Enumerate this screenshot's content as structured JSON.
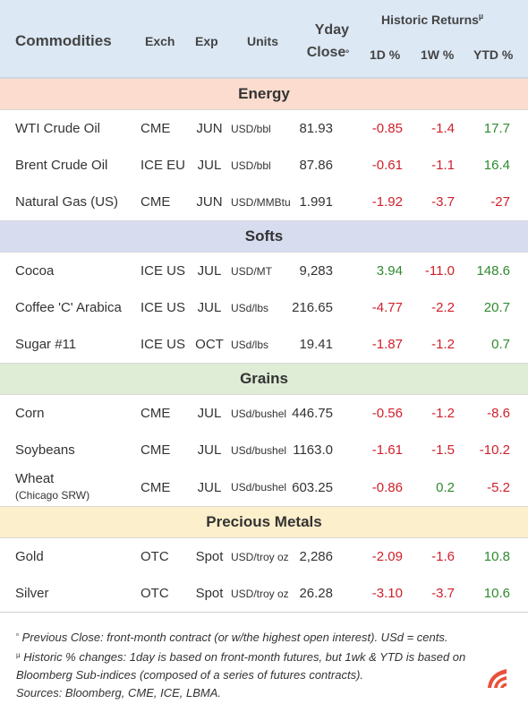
{
  "header": {
    "commodities": "Commodities",
    "exch": "Exch",
    "exp": "Exp",
    "units": "Units",
    "yday_line1": "Yday",
    "yday_line2": "Close",
    "yday_mark": "ᵒ",
    "historic": "Historic Returns",
    "historic_mark": "µ",
    "d1": "1D %",
    "w1": "1W %",
    "ytd": "YTD %"
  },
  "sections": [
    {
      "title": "Energy",
      "rows": [
        {
          "name": "WTI Crude Oil",
          "sub": "",
          "exch": "CME",
          "exp": "JUN",
          "units": "USD/bbl",
          "close": "81.93",
          "d1": "-0.85",
          "w1": "-1.4",
          "ytd": "17.7"
        },
        {
          "name": "Brent Crude Oil",
          "sub": "",
          "exch": "ICE EU",
          "exp": "JUL",
          "units": "USD/bbl",
          "close": "87.86",
          "d1": "-0.61",
          "w1": "-1.1",
          "ytd": "16.4"
        },
        {
          "name": "Natural Gas (US)",
          "sub": "",
          "exch": "CME",
          "exp": "JUN",
          "units": "USD/MMBtu",
          "close": "1.991",
          "d1": "-1.92",
          "w1": "-3.7",
          "ytd": "-27"
        }
      ]
    },
    {
      "title": "Softs",
      "rows": [
        {
          "name": "Cocoa",
          "sub": "",
          "exch": "ICE US",
          "exp": "JUL",
          "units": "USD/MT",
          "close": "9,283",
          "d1": "3.94",
          "w1": "-11.0",
          "ytd": "148.6"
        },
        {
          "name": "Coffee 'C' Arabica",
          "sub": "",
          "exch": "ICE US",
          "exp": "JUL",
          "units": "USd/lbs",
          "close": "216.65",
          "d1": "-4.77",
          "w1": "-2.2",
          "ytd": "20.7"
        },
        {
          "name": "Sugar #11",
          "sub": "",
          "exch": "ICE US",
          "exp": "OCT",
          "units": "USd/lbs",
          "close": "19.41",
          "d1": "-1.87",
          "w1": "-1.2",
          "ytd": "0.7"
        }
      ]
    },
    {
      "title": "Grains",
      "rows": [
        {
          "name": "Corn",
          "sub": "",
          "exch": "CME",
          "exp": "JUL",
          "units": "USd/bushel",
          "close": "446.75",
          "d1": "-0.56",
          "w1": "-1.2",
          "ytd": "-8.6"
        },
        {
          "name": "Soybeans",
          "sub": "",
          "exch": "CME",
          "exp": "JUL",
          "units": "USd/bushel",
          "close": "1163.0",
          "d1": "-1.61",
          "w1": "-1.5",
          "ytd": "-10.2"
        },
        {
          "name": "Wheat",
          "sub": "(Chicago SRW)",
          "exch": "CME",
          "exp": "JUL",
          "units": "USd/bushel",
          "close": "603.25",
          "d1": "-0.86",
          "w1": "0.2",
          "ytd": "-5.2"
        }
      ]
    },
    {
      "title": "Precious Metals",
      "rows": [
        {
          "name": "Gold",
          "sub": "",
          "exch": "OTC",
          "exp": "Spot",
          "units": "USD/troy oz",
          "close": "2,286",
          "d1": "-2.09",
          "w1": "-1.6",
          "ytd": "10.8"
        },
        {
          "name": "Silver",
          "sub": "",
          "exch": "OTC",
          "exp": "Spot",
          "units": "USD/troy oz",
          "close": "26.28",
          "d1": "-3.10",
          "w1": "-3.7",
          "ytd": "10.6"
        }
      ]
    }
  ],
  "footer": {
    "note1_mark": "ᵒ",
    "note1": "Previous Close: front-month contract (or w/the highest open interest). USd = cents.",
    "note2_mark": "µ",
    "note2": "Historic % changes: 1day is based on front-month futures, but 1wk & YTD is based on Bloomberg Sub-indices (composed of a series of futures contracts).",
    "sources": "Sources: Bloomberg, CME, ICE, LBMA."
  },
  "colors": {
    "negative": "#d0202a",
    "positive": "#2f8a2f",
    "header_bg": "#dce8f4",
    "energy_bg": "#fbdccf",
    "softs_bg": "#d7dcef",
    "grains_bg": "#dfecd6",
    "metals_bg": "#fcefcb",
    "logo": "#e8503a"
  },
  "logo_icon": "brand-logo-icon"
}
